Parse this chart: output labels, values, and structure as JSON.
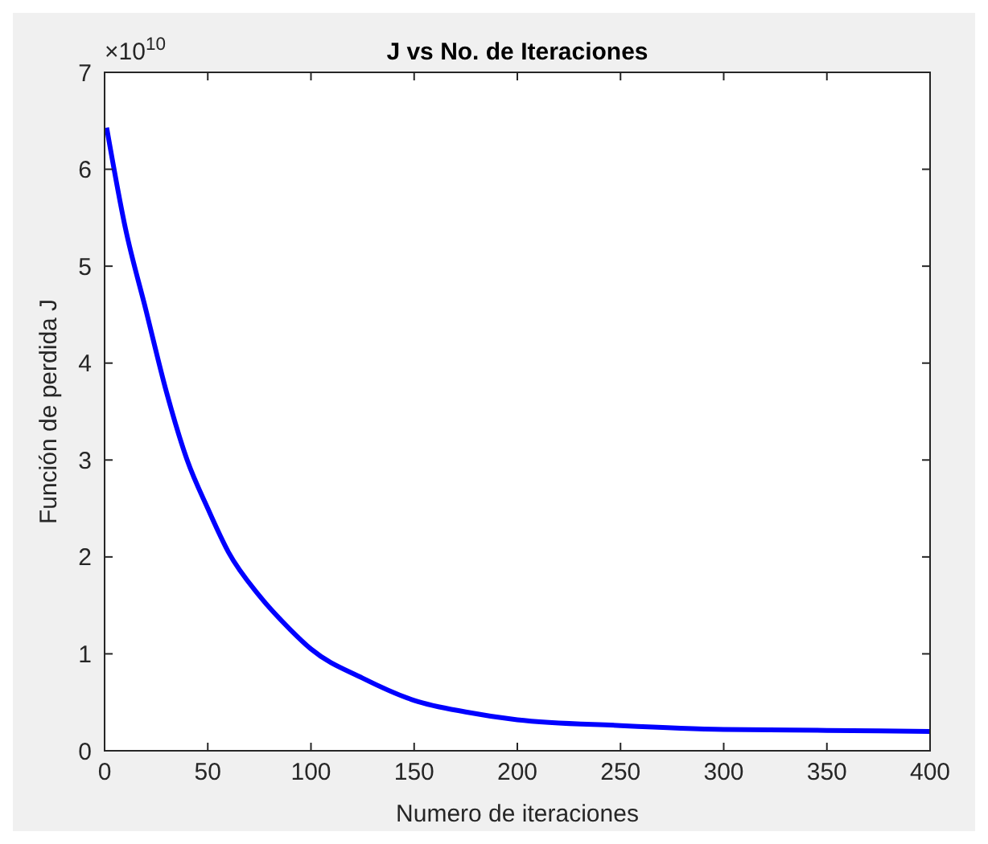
{
  "chart_data": {
    "type": "line",
    "title": "J vs No. de Iteraciones",
    "xlabel": "Numero de iteraciones",
    "ylabel": "Función de perdida J",
    "annotations": [
      "×10$^{10}$"
    ],
    "x": [
      1,
      10,
      20,
      30,
      40,
      50,
      60,
      75,
      90,
      100,
      125,
      150,
      175,
      200,
      250,
      300,
      350,
      400
    ],
    "series": [
      {
        "color": "#0000ff",
        "values": [
          6.43,
          5.4,
          4.55,
          3.7,
          3.0,
          2.5,
          2.05,
          1.6,
          1.25,
          1.05,
          0.75,
          0.52,
          0.4,
          0.32,
          0.26,
          0.22,
          0.21,
          0.2
        ]
      }
    ],
    "xlim": [
      0,
      400
    ],
    "xticks": [
      0,
      50,
      100,
      150,
      200,
      250,
      300,
      350,
      400
    ],
    "ylim": [
      0,
      7
    ],
    "yticks": [
      0,
      1,
      2,
      3,
      4,
      5,
      6,
      7
    ],
    "grid": false,
    "marker": "none",
    "line_style": "solid"
  }
}
